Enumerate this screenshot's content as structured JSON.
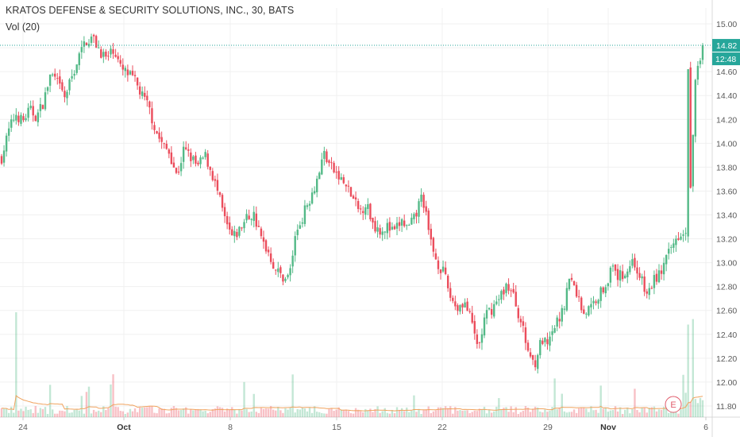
{
  "header": {
    "title": "KRATOS DEFENSE & SECURITY SOLUTIONS, INC., 30, BATS",
    "volume_indicator": "Vol (20)"
  },
  "price_tags": {
    "last_price": "14.82",
    "time_to_close": "12:48"
  },
  "earnings_marker": "E",
  "colors": {
    "up": "#53b987",
    "down": "#eb4d5c",
    "grid": "#f0f0f0",
    "volume_ma": "#f0a35e",
    "last_price_line": "#26a69a",
    "tag_bg": "#26a69a"
  },
  "chart_data": {
    "type": "candlestick",
    "title": "KRATOS DEFENSE & SECURITY SOLUTIONS, INC., 30, BATS",
    "interval": "30",
    "y_ticks": [
      "15.00",
      "14.80",
      "14.60",
      "14.40",
      "14.20",
      "14.00",
      "13.80",
      "13.60",
      "13.40",
      "13.20",
      "13.00",
      "12.80",
      "12.60",
      "12.40",
      "12.20",
      "12.00",
      "11.80"
    ],
    "ylim": [
      11.78,
      15.02
    ],
    "x_ticks": [
      {
        "label": "24",
        "bold": false
      },
      {
        "label": "Oct",
        "bold": true
      },
      {
        "label": "8",
        "bold": false
      },
      {
        "label": "15",
        "bold": false
      },
      {
        "label": "22",
        "bold": false
      },
      {
        "label": "29",
        "bold": false
      },
      {
        "label": "Nov",
        "bold": true
      },
      {
        "label": "6",
        "bold": false
      }
    ],
    "close_path": [
      [
        0,
        13.88
      ],
      [
        6,
        14.1
      ],
      [
        12,
        14.25
      ],
      [
        18,
        14.18
      ],
      [
        24,
        14.28
      ],
      [
        30,
        14.22
      ],
      [
        36,
        14.35
      ],
      [
        42,
        14.58
      ],
      [
        48,
        14.5
      ],
      [
        54,
        14.38
      ],
      [
        60,
        14.55
      ],
      [
        66,
        14.72
      ],
      [
        72,
        14.86
      ],
      [
        78,
        14.88
      ],
      [
        84,
        14.78
      ],
      [
        90,
        14.7
      ],
      [
        96,
        14.8
      ],
      [
        102,
        14.62
      ],
      [
        108,
        14.58
      ],
      [
        114,
        14.52
      ],
      [
        120,
        14.4
      ],
      [
        126,
        14.3
      ],
      [
        132,
        14.1
      ],
      [
        138,
        13.98
      ],
      [
        144,
        13.92
      ],
      [
        150,
        13.72
      ],
      [
        156,
        13.95
      ],
      [
        162,
        13.88
      ],
      [
        168,
        13.8
      ],
      [
        174,
        13.9
      ],
      [
        180,
        13.75
      ],
      [
        186,
        13.55
      ],
      [
        192,
        13.32
      ],
      [
        198,
        13.2
      ],
      [
        204,
        13.28
      ],
      [
        210,
        13.38
      ],
      [
        216,
        13.4
      ],
      [
        222,
        13.2
      ],
      [
        228,
        13.1
      ],
      [
        234,
        12.95
      ],
      [
        240,
        12.88
      ],
      [
        246,
        12.88
      ],
      [
        252,
        13.25
      ],
      [
        258,
        13.4
      ],
      [
        264,
        13.55
      ],
      [
        270,
        13.7
      ],
      [
        276,
        13.92
      ],
      [
        282,
        13.8
      ],
      [
        288,
        13.72
      ],
      [
        294,
        13.65
      ],
      [
        300,
        13.55
      ],
      [
        306,
        13.42
      ],
      [
        312,
        13.5
      ],
      [
        318,
        13.32
      ],
      [
        324,
        13.28
      ],
      [
        330,
        13.3
      ],
      [
        336,
        13.25
      ],
      [
        342,
        13.35
      ],
      [
        348,
        13.28
      ],
      [
        354,
        13.38
      ],
      [
        360,
        13.58
      ],
      [
        366,
        13.22
      ],
      [
        372,
        13.02
      ],
      [
        378,
        12.92
      ],
      [
        384,
        12.72
      ],
      [
        390,
        12.62
      ],
      [
        396,
        12.68
      ],
      [
        402,
        12.5
      ],
      [
        408,
        12.28
      ],
      [
        414,
        12.55
      ],
      [
        420,
        12.62
      ],
      [
        426,
        12.7
      ],
      [
        432,
        12.82
      ],
      [
        438,
        12.72
      ],
      [
        444,
        12.52
      ],
      [
        450,
        12.28
      ],
      [
        456,
        12.15
      ],
      [
        462,
        12.35
      ],
      [
        468,
        12.3
      ],
      [
        474,
        12.48
      ],
      [
        480,
        12.58
      ],
      [
        486,
        12.88
      ],
      [
        492,
        12.75
      ],
      [
        498,
        12.58
      ],
      [
        504,
        12.62
      ],
      [
        510,
        12.72
      ],
      [
        516,
        12.8
      ],
      [
        522,
        12.95
      ],
      [
        528,
        12.88
      ],
      [
        534,
        12.92
      ],
      [
        540,
        13.02
      ],
      [
        546,
        12.9
      ],
      [
        552,
        12.72
      ],
      [
        558,
        12.85
      ],
      [
        564,
        12.92
      ],
      [
        570,
        13.05
      ],
      [
        576,
        13.18
      ],
      [
        582,
        13.28
      ],
      [
        588,
        13.22
      ],
      [
        594,
        14.55
      ],
      [
        600,
        14.82
      ]
    ],
    "volume_scale_note": "volume bars shown without a labelled axis"
  }
}
